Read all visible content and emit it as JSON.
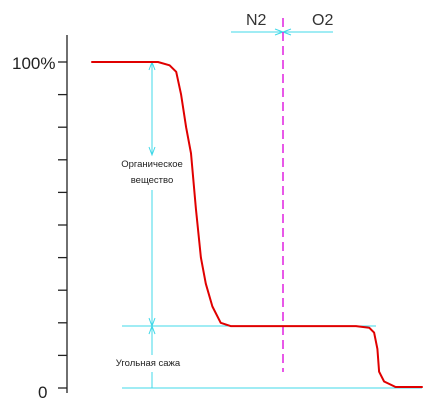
{
  "chart_data": {
    "type": "line",
    "title": "",
    "xlabel": "",
    "ylabel": "",
    "ylim": [
      0,
      100
    ],
    "y_tick_count": 11,
    "y_tick_labels": [
      "0",
      "100%"
    ],
    "legend": "none",
    "grid": false,
    "series": [
      {
        "values": [
          [
            0,
            100
          ],
          [
            0.2,
            100
          ],
          [
            0.235,
            99
          ],
          [
            0.255,
            97
          ],
          [
            0.27,
            90
          ],
          [
            0.285,
            80
          ],
          [
            0.3,
            72
          ],
          [
            0.315,
            55
          ],
          [
            0.33,
            40
          ],
          [
            0.345,
            32
          ],
          [
            0.365,
            25
          ],
          [
            0.39,
            20
          ],
          [
            0.42,
            19
          ],
          [
            0.55,
            19
          ],
          [
            0.8,
            19
          ],
          [
            0.84,
            18.5
          ],
          [
            0.855,
            17
          ],
          [
            0.865,
            12
          ],
          [
            0.87,
            5
          ],
          [
            0.885,
            2
          ],
          [
            0.92,
            0.3
          ],
          [
            1.0,
            0.3
          ]
        ]
      }
    ],
    "regions": [
      {
        "label": "N2",
        "side": "left"
      },
      {
        "label": "O2",
        "side": "right"
      }
    ],
    "annotations": [
      {
        "text_lines": [
          "Органическое",
          "вещество"
        ],
        "span": [
          19,
          100
        ]
      },
      {
        "text_lines": [
          "Угольная сажа"
        ],
        "span": [
          0,
          19
        ]
      }
    ],
    "colors": {
      "curve": "#e00000",
      "divider": "#e020e0",
      "guides": "#40d8e8",
      "axis": "#222222"
    }
  }
}
